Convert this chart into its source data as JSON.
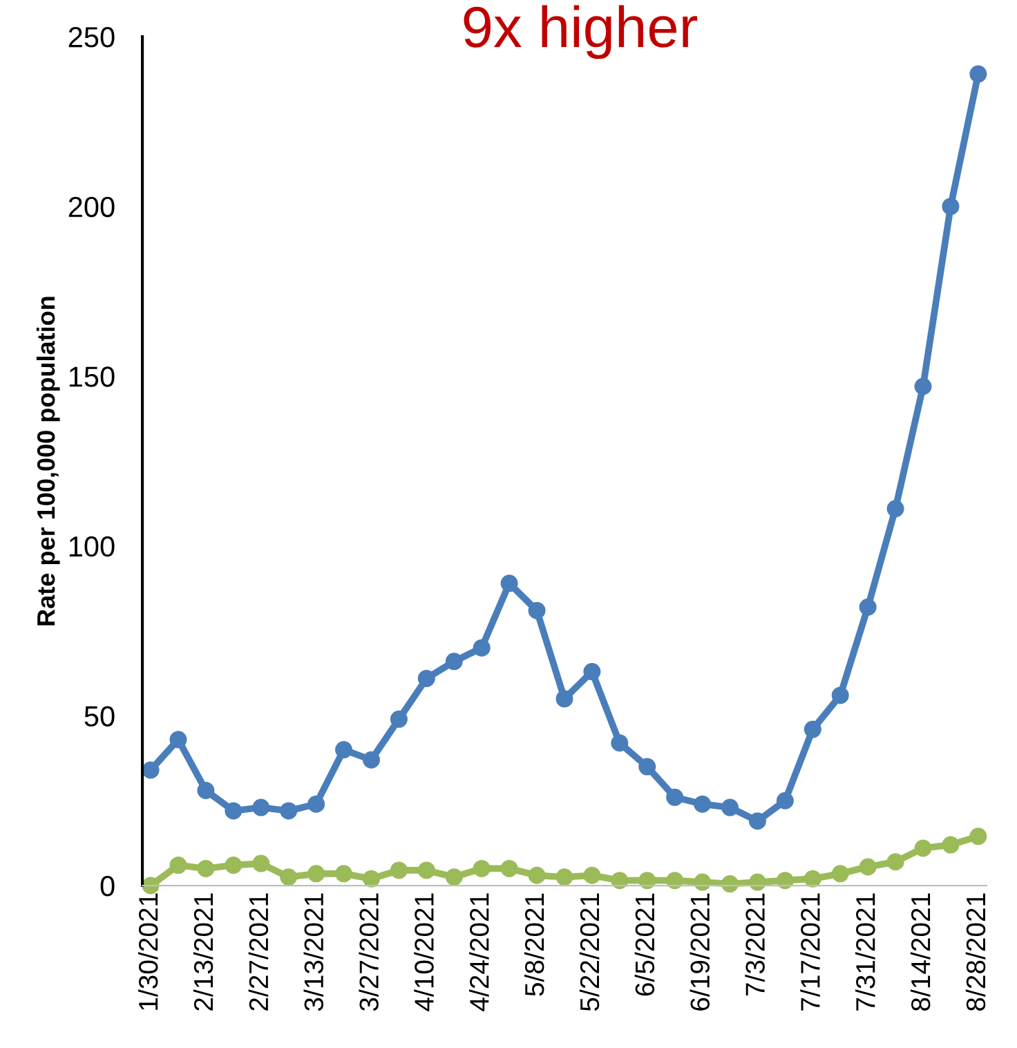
{
  "chart_data": {
    "type": "line",
    "title": "9x higher",
    "ylabel": "Rate per 100,000 population",
    "categories": [
      "1/30/2021",
      null,
      "2/13/2021",
      null,
      "2/27/2021",
      null,
      "3/13/2021",
      null,
      "3/27/2021",
      null,
      "4/10/2021",
      null,
      "4/24/2021",
      null,
      "5/8/2021",
      null,
      "5/22/2021",
      null,
      "6/5/2021",
      null,
      "6/19/2021",
      null,
      "7/3/2021",
      null,
      "7/17/2021",
      null,
      "7/31/2021",
      null,
      "8/14/2021",
      null,
      "8/28/2021"
    ],
    "series": [
      {
        "color": "#4a7ebb",
        "values": [
          34,
          43,
          28,
          22,
          23,
          22,
          24,
          40,
          37,
          49,
          61,
          66,
          70,
          89,
          81,
          55,
          63,
          42,
          35,
          26,
          24,
          23,
          19,
          25,
          46,
          56,
          82,
          111,
          147,
          200,
          239
        ]
      },
      {
        "color": "#9bbb59",
        "values": [
          0,
          6,
          5,
          6,
          6.5,
          2.5,
          3.5,
          3.5,
          2,
          4.5,
          4.5,
          2.5,
          5,
          5,
          3,
          2.5,
          3,
          1.5,
          1.5,
          1.5,
          1,
          0.5,
          1,
          1.5,
          2,
          3.5,
          5.5,
          7,
          11,
          12,
          14.5
        ]
      }
    ],
    "ylim": [
      0,
      250
    ],
    "yticks": [
      0,
      50,
      100,
      150,
      200,
      250
    ],
    "grid": false,
    "marker": "circle",
    "line_style": "solid"
  }
}
